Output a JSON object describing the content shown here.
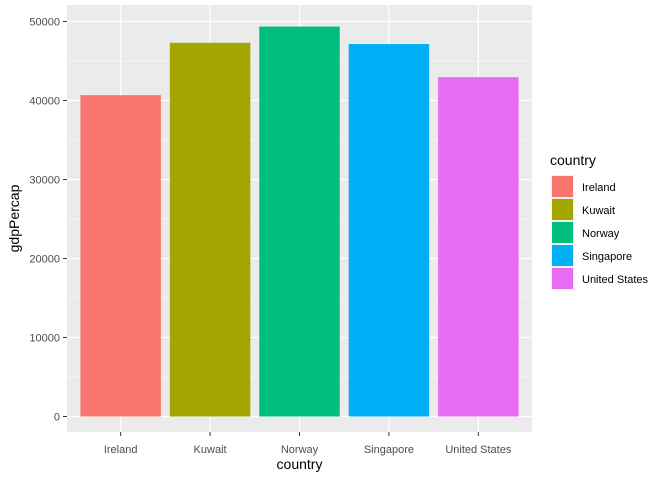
{
  "chart_data": {
    "type": "bar",
    "categories": [
      "Ireland",
      "Kuwait",
      "Norway",
      "Singapore",
      "United States"
    ],
    "values": [
      40676,
      47307,
      49357,
      47143,
      42952
    ],
    "colors": [
      "#F8766D",
      "#A3A500",
      "#00BF7D",
      "#00B0F6",
      "#E76BF3"
    ],
    "xlabel": "country",
    "ylabel": "gdpPercap",
    "ylim": [
      0,
      51500
    ],
    "yticks": [
      0,
      10000,
      20000,
      30000,
      40000,
      50000
    ],
    "grid": true,
    "panel_background": "#EBEBEB",
    "legend": {
      "title": "country",
      "placement": "right",
      "entries": [
        "Ireland",
        "Kuwait",
        "Norway",
        "Singapore",
        "United States"
      ]
    }
  }
}
